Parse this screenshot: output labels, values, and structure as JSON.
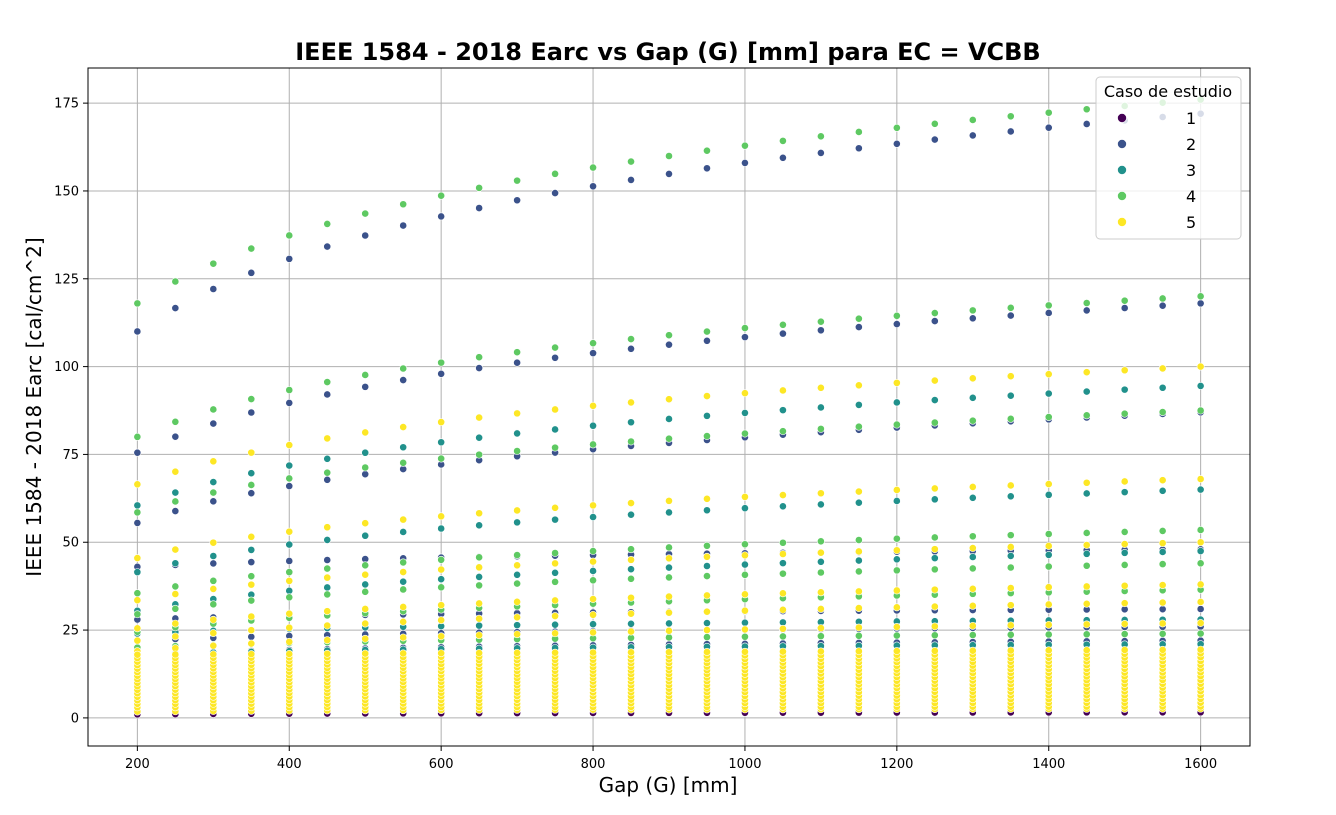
{
  "chart_data": {
    "type": "scatter",
    "title": "IEEE 1584 - 2018 Earc vs Gap (G) [mm] para EC = VCBB",
    "xlabel": "Gap (G) [mm]",
    "ylabel": "IEEE 1584 - 2018 Earc [cal/cm^2]",
    "xlim": [
      135,
      1665
    ],
    "ylim": [
      -8,
      185
    ],
    "xticks": [
      200,
      400,
      600,
      800,
      1000,
      1200,
      1400,
      1600
    ],
    "yticks": [
      0,
      25,
      50,
      75,
      100,
      125,
      150,
      175
    ],
    "grid": true,
    "legend": {
      "title": "Caso de estudio",
      "placement": "top-right"
    },
    "x": [
      200,
      250,
      300,
      350,
      400,
      450,
      500,
      550,
      600,
      650,
      700,
      750,
      800,
      850,
      900,
      950,
      1000,
      1050,
      1100,
      1150,
      1200,
      1250,
      1300,
      1350,
      1400,
      1450,
      1500,
      1550,
      1600
    ],
    "series": [
      {
        "name": "1",
        "color": "#440154",
        "curves": [
          {
            "start": 1.0,
            "end": 1.6
          }
        ]
      },
      {
        "name": "2",
        "color": "#3b528b",
        "curves": [
          {
            "start": 110,
            "end": 172
          },
          {
            "start": 75.5,
            "end": 118
          },
          {
            "start": 55.5,
            "end": 87
          },
          {
            "start": 43,
            "end": 48
          },
          {
            "start": 28,
            "end": 31
          },
          {
            "start": 22,
            "end": 26
          },
          {
            "start": 18,
            "end": 22
          }
        ]
      },
      {
        "name": "3",
        "color": "#21918c",
        "curves": [
          {
            "start": 60.5,
            "end": 94.5
          },
          {
            "start": 41.5,
            "end": 65
          },
          {
            "start": 30.5,
            "end": 47.5
          },
          {
            "start": 24,
            "end": 28
          },
          {
            "start": 18,
            "end": 21
          },
          {
            "start": 15,
            "end": 18
          }
        ]
      },
      {
        "name": "4",
        "color": "#5ec962",
        "curves": [
          {
            "start": 118,
            "end": 176
          },
          {
            "start": 80,
            "end": 120
          },
          {
            "start": 58.5,
            "end": 87.5
          },
          {
            "start": 35.5,
            "end": 53.5
          },
          {
            "start": 29.5,
            "end": 44
          },
          {
            "start": 24.5,
            "end": 36.5
          },
          {
            "start": 20,
            "end": 24
          },
          {
            "start": 16,
            "end": 19
          }
        ]
      },
      {
        "name": "5",
        "color": "#fde725",
        "curves": [
          {
            "start": 66.5,
            "end": 100
          },
          {
            "start": 45.5,
            "end": 68
          },
          {
            "start": 33.5,
            "end": 50
          },
          {
            "start": 25.5,
            "end": 38
          },
          {
            "start": 22,
            "end": 33
          },
          {
            "start": 19,
            "end": 27
          },
          {
            "start": 1.8,
            "end": 2.6
          }
        ],
        "dense_range": [
          3,
          18
        ]
      }
    ]
  }
}
